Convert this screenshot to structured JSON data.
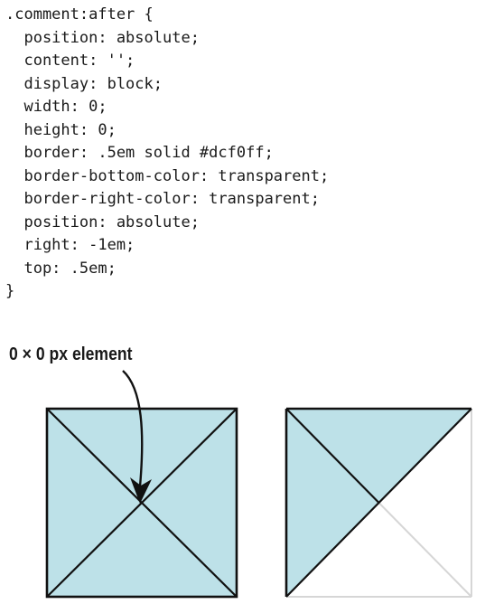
{
  "code": {
    "lines": [
      ".comment:after {",
      "  position: absolute;",
      "  content: '';",
      "  display: block;",
      "  width: 0;",
      "  height: 0;",
      "  border: .5em solid #dcf0ff;",
      "  border-bottom-color: transparent;",
      "  border-right-color: transparent;",
      "  position: absolute;",
      "  right: -1em;",
      "  top: .5em;",
      "}"
    ]
  },
  "caption": "0 × 0 px element",
  "colors": {
    "fill": "#bde1e8",
    "stroke": "#111111",
    "faded_stroke": "#d6d6d6"
  }
}
